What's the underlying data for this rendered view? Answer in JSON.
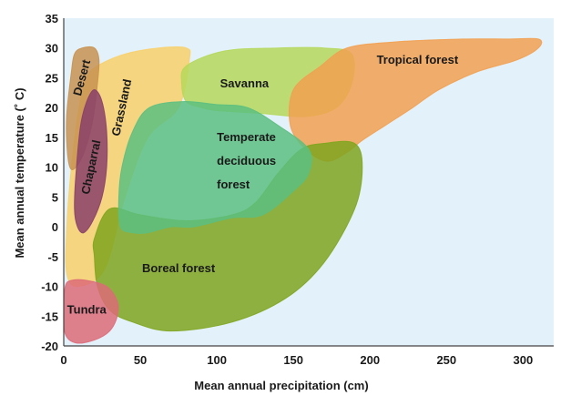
{
  "chart_data": {
    "type": "area",
    "title": "",
    "xlabel": "Mean annual precipitation (cm)",
    "ylabel": "Mean annual temperature (˚ C)",
    "xlim": [
      0,
      320
    ],
    "ylim": [
      -20,
      35
    ],
    "x_ticks": [
      0,
      50,
      100,
      150,
      200,
      250,
      300
    ],
    "y_ticks": [
      35,
      30,
      25,
      20,
      15,
      10,
      5,
      0,
      -5,
      -10,
      -15,
      -20
    ],
    "plot_background": "#e3f1fb",
    "regions": [
      {
        "name": "Grassland",
        "color": "#f8d06a",
        "label_lines": [
          "Grassland"
        ],
        "label_pos": [
          38,
          20
        ],
        "label_rotation": -78,
        "polygon": [
          [
            22,
            27
          ],
          [
            40,
            29
          ],
          [
            62,
            30
          ],
          [
            80,
            30
          ],
          [
            82,
            28
          ],
          [
            75,
            20
          ],
          [
            55,
            15
          ],
          [
            40,
            5
          ],
          [
            27,
            -7
          ],
          [
            10,
            -10
          ],
          [
            2,
            -8
          ],
          [
            2,
            0
          ],
          [
            5,
            10
          ],
          [
            10,
            20
          ],
          [
            15,
            25
          ]
        ]
      },
      {
        "name": "Desert",
        "color": "#c89250",
        "label_lines": [
          "Desert"
        ],
        "label_pos": [
          12,
          25
        ],
        "label_rotation": -75,
        "polygon": [
          [
            2,
            19
          ],
          [
            5,
            26
          ],
          [
            7,
            29
          ],
          [
            12,
            30
          ],
          [
            20,
            30
          ],
          [
            23,
            28
          ],
          [
            22,
            24
          ],
          [
            19,
            18
          ],
          [
            14,
            13
          ],
          [
            8,
            10
          ],
          [
            4,
            10
          ],
          [
            2,
            14
          ]
        ]
      },
      {
        "name": "Chaparral",
        "color": "#8a3f6a",
        "label_lines": [
          "Chaparral"
        ],
        "label_pos": [
          18,
          10
        ],
        "label_rotation": -78,
        "polygon": [
          [
            7,
            3
          ],
          [
            8,
            9
          ],
          [
            11,
            17
          ],
          [
            15,
            21
          ],
          [
            20,
            23
          ],
          [
            25,
            21
          ],
          [
            28,
            16
          ],
          [
            28,
            10
          ],
          [
            25,
            5
          ],
          [
            19,
            1
          ],
          [
            13,
            -1
          ],
          [
            9,
            0
          ]
        ]
      },
      {
        "name": "Savanna",
        "color": "#b5d85a",
        "label_lines": [
          "Savanna"
        ],
        "label_pos": [
          118,
          24
        ],
        "label_rotation": 0,
        "polygon": [
          [
            80,
            27
          ],
          [
            105,
            29.5
          ],
          [
            140,
            30
          ],
          [
            170,
            30
          ],
          [
            188,
            29
          ],
          [
            188,
            24
          ],
          [
            178,
            20
          ],
          [
            158,
            18.5
          ],
          [
            130,
            19
          ],
          [
            100,
            19.5
          ],
          [
            90,
            20
          ],
          [
            80,
            21
          ],
          [
            77,
            24
          ]
        ]
      },
      {
        "name": "Tropical forest",
        "color": "#f2a050",
        "label_lines": [
          "Tropical forest"
        ],
        "label_pos": [
          231,
          28
        ],
        "label_rotation": 0,
        "polygon": [
          [
            150,
            23
          ],
          [
            168,
            27
          ],
          [
            185,
            30
          ],
          [
            215,
            31
          ],
          [
            260,
            31.5
          ],
          [
            290,
            31.5
          ],
          [
            310,
            31.5
          ],
          [
            310,
            30
          ],
          [
            296,
            28
          ],
          [
            270,
            26
          ],
          [
            245,
            23
          ],
          [
            228,
            20
          ],
          [
            210,
            17
          ],
          [
            195,
            14.5
          ],
          [
            185,
            12.5
          ],
          [
            172,
            11
          ],
          [
            158,
            13
          ],
          [
            148,
            17
          ]
        ]
      },
      {
        "name": "Boreal forest",
        "color": "#7fa51e",
        "label_lines": [
          "Boreal forest"
        ],
        "label_pos": [
          75,
          -7
        ],
        "label_rotation": 0,
        "polygon": [
          [
            20,
            -2
          ],
          [
            30,
            3
          ],
          [
            50,
            2
          ],
          [
            80,
            1
          ],
          [
            110,
            2
          ],
          [
            125,
            4
          ],
          [
            140,
            9
          ],
          [
            155,
            13
          ],
          [
            170,
            14
          ],
          [
            190,
            14
          ],
          [
            195,
            10
          ],
          [
            190,
            3
          ],
          [
            170,
            -6
          ],
          [
            145,
            -12
          ],
          [
            110,
            -16
          ],
          [
            70,
            -17.5
          ],
          [
            45,
            -16
          ],
          [
            30,
            -14
          ],
          [
            22,
            -10
          ],
          [
            20,
            -5
          ]
        ]
      },
      {
        "name": "Temperate deciduous forest",
        "color": "#5cbf80",
        "label_lines": [
          "Temperate",
          "deciduous",
          "forest"
        ],
        "label_pos": [
          100,
          11
        ],
        "label_rotation": 0,
        "polygon": [
          [
            37,
            0
          ],
          [
            36,
            5
          ],
          [
            38,
            10
          ],
          [
            45,
            16
          ],
          [
            56,
            20
          ],
          [
            78,
            21
          ],
          [
            100,
            20.5
          ],
          [
            120,
            20
          ],
          [
            140,
            17
          ],
          [
            160,
            13
          ],
          [
            160,
            9
          ],
          [
            150,
            6
          ],
          [
            130,
            2
          ],
          [
            110,
            1.5
          ],
          [
            85,
            0
          ],
          [
            70,
            0
          ],
          [
            55,
            -1
          ],
          [
            45,
            -1
          ]
        ]
      },
      {
        "name": "Tundra",
        "color": "#dd6b78",
        "label_lines": [
          "Tundra"
        ],
        "label_pos": [
          15,
          -14
        ],
        "label_rotation": 0,
        "polygon": [
          [
            1,
            -10
          ],
          [
            5,
            -9
          ],
          [
            15,
            -9
          ],
          [
            28,
            -10
          ],
          [
            35,
            -12.5
          ],
          [
            35,
            -15
          ],
          [
            30,
            -17.5
          ],
          [
            20,
            -19
          ],
          [
            8,
            -19.5
          ],
          [
            1,
            -18
          ],
          [
            0,
            -14
          ]
        ]
      }
    ]
  }
}
